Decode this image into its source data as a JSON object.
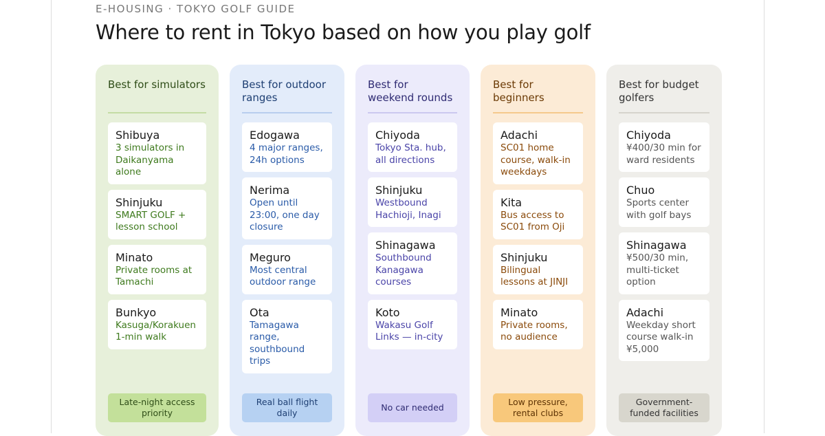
{
  "header": {
    "kicker": "E-HOUSING · TOKYO GOLF GUIDE",
    "title": "Where to rent in Tokyo based on how you play golf"
  },
  "columns": [
    {
      "heading": "Best for simulators",
      "items": [
        {
          "name": "Shibuya",
          "desc": "3 simulators in Daikanyama alone"
        },
        {
          "name": "Shinjuku",
          "desc": "SMART GOLF + lesson school"
        },
        {
          "name": "Minato",
          "desc": "Private rooms at Tamachi"
        },
        {
          "name": "Bunkyo",
          "desc": "Kasuga/Korakuen 1-min walk"
        }
      ],
      "footer": "Late-night access priority"
    },
    {
      "heading": "Best for outdoor ranges",
      "items": [
        {
          "name": "Edogawa",
          "desc": "4 major ranges, 24h options"
        },
        {
          "name": "Nerima",
          "desc": "Open until 23:00, one day closure"
        },
        {
          "name": "Meguro",
          "desc": "Most central outdoor range"
        },
        {
          "name": "Ota",
          "desc": "Tamagawa range, southbound trips"
        }
      ],
      "footer": "Real ball flight daily"
    },
    {
      "heading": "Best for weekend rounds",
      "items": [
        {
          "name": "Chiyoda",
          "desc": "Tokyo Sta. hub, all directions"
        },
        {
          "name": "Shinjuku",
          "desc": "Westbound Hachioji, Inagi"
        },
        {
          "name": "Shinagawa",
          "desc": "Southbound Kanagawa courses"
        },
        {
          "name": "Koto",
          "desc": "Wakasu Golf Links — in-city"
        }
      ],
      "footer": "No car needed"
    },
    {
      "heading": "Best for beginners",
      "items": [
        {
          "name": "Adachi",
          "desc": "SC01 home course, walk-in weekdays"
        },
        {
          "name": "Kita",
          "desc": "Bus access to SC01 from Oji"
        },
        {
          "name": "Shinjuku",
          "desc": "Bilingual lessons at JINJI"
        },
        {
          "name": "Minato",
          "desc": "Private rooms, no audience"
        }
      ],
      "footer": "Low pressure, rental clubs"
    },
    {
      "heading": "Best for budget golfers",
      "items": [
        {
          "name": "Chiyoda",
          "desc": "¥400/30 min for ward residents"
        },
        {
          "name": "Chuo",
          "desc": "Sports center with golf bays"
        },
        {
          "name": "Shinagawa",
          "desc": "¥500/30 min, multi-ticket option"
        },
        {
          "name": "Adachi",
          "desc": "Weekday short course walk-in ¥5,000"
        }
      ],
      "footer": "Government-funded facilities"
    }
  ]
}
